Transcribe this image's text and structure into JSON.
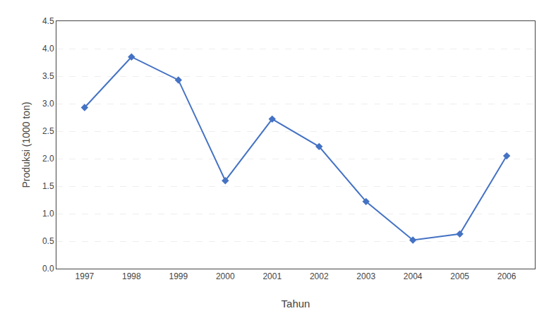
{
  "chart_data": {
    "type": "line",
    "x": [
      1997,
      1998,
      1999,
      2000,
      2001,
      2002,
      2003,
      2004,
      2005,
      2006
    ],
    "values": [
      2.93,
      3.85,
      3.43,
      1.6,
      2.72,
      2.22,
      1.22,
      0.52,
      0.63,
      2.05
    ],
    "xlabel": "Tahun",
    "ylabel": "Produksi (1000 ton)",
    "xlim": [
      1996.4,
      2006.6
    ],
    "xticks": [
      1997,
      1998,
      1999,
      2000,
      2001,
      2002,
      2003,
      2004,
      2005,
      2006
    ],
    "ylim": [
      0.0,
      4.5
    ],
    "yticks": [
      {
        "value": 0,
        "label": "0.0"
      },
      0.5,
      {
        "value": 1,
        "label": "1.0"
      },
      1.5,
      {
        "value": 2,
        "label": "2.0"
      },
      2.5,
      {
        "value": 3,
        "label": "3.0"
      },
      3.5,
      {
        "value": 4,
        "label": "4.0"
      },
      4.5
    ],
    "color": "#4472C4",
    "marker": "diamond",
    "grid": true
  }
}
